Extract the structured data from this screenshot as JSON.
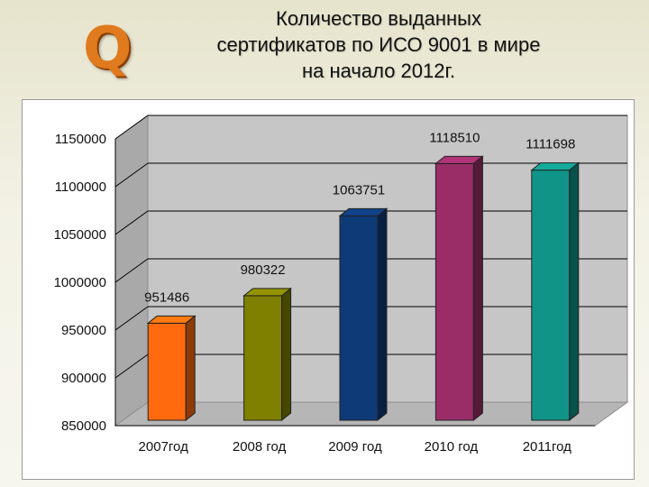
{
  "header": {
    "logo_letter": "Q",
    "title_lines": [
      "Количество выданных",
      "сертификатов  по ИСО 9001 в мире",
      "на начало 2012г."
    ]
  },
  "chart_data": {
    "type": "bar",
    "title": "Количество выданных сертификатов  по ИСО 9001 в мире на начало 2012г.",
    "categories": [
      "2007год",
      "2008 год",
      "2009 год",
      "2010 год",
      "2011год"
    ],
    "values": [
      951486,
      980322,
      1063751,
      1118510,
      1111698
    ],
    "data_labels": [
      "951486",
      "980322",
      "1063751",
      "1118510",
      "1111698"
    ],
    "ylim": [
      850000,
      1150000
    ],
    "yticks": [
      850000,
      900000,
      950000,
      1000000,
      1050000,
      1100000,
      1150000
    ],
    "ytick_labels": [
      "850000",
      "900000",
      "950000",
      "1000000",
      "1050000",
      "1100000",
      "1150000"
    ],
    "grid": true,
    "legend": "none",
    "three_d": true,
    "colors": [
      "#ff6a0f",
      "#808000",
      "#0f3a78",
      "#9a2d68",
      "#119488"
    ],
    "wall_color": "#c6c6c6",
    "floor_color": "#b6b6b6"
  }
}
